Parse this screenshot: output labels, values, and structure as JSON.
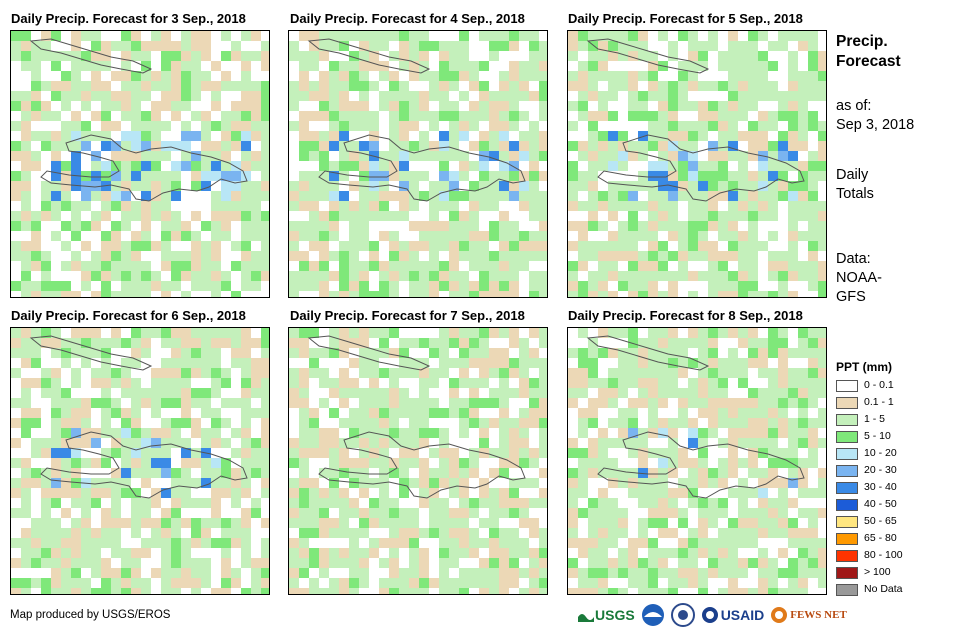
{
  "panels": [
    {
      "title": "Daily Precip. Forecast for 3 Sep., 2018"
    },
    {
      "title": "Daily Precip. Forecast for 4 Sep., 2018"
    },
    {
      "title": "Daily Precip. Forecast for 5 Sep., 2018"
    },
    {
      "title": "Daily Precip. Forecast for 6 Sep., 2018"
    },
    {
      "title": "Daily Precip. Forecast for 7 Sep., 2018"
    },
    {
      "title": "Daily Precip. Forecast for 8 Sep., 2018"
    }
  ],
  "side": {
    "heading_line1": "Precip.",
    "heading_line2": "Forecast",
    "asof_line1": "as of:",
    "asof_line2": "Sep 3, 2018",
    "daily_line1": "Daily",
    "daily_line2": "Totals",
    "data_line1": "Data:",
    "data_line2": "NOAA-",
    "data_line3": "GFS"
  },
  "legend": {
    "title": "PPT (mm)",
    "items": [
      {
        "label": "0 - 0.1",
        "color": "#ffffff"
      },
      {
        "label": "0.1 - 1",
        "color": "#ecd8b6"
      },
      {
        "label": "1 - 5",
        "color": "#c4f0bb"
      },
      {
        "label": "5 - 10",
        "color": "#7fe87a"
      },
      {
        "label": "10 - 20",
        "color": "#b8e6f6"
      },
      {
        "label": "20 - 30",
        "color": "#7ab4f0"
      },
      {
        "label": "30 - 40",
        "color": "#3a8ae6"
      },
      {
        "label": "40 - 50",
        "color": "#1c5cd8"
      },
      {
        "label": "50 - 65",
        "color": "#ffe680"
      },
      {
        "label": "65 - 80",
        "color": "#ff9900"
      },
      {
        "label": "80 - 100",
        "color": "#ff3300"
      },
      {
        "label": "> 100",
        "color": "#a01818"
      },
      {
        "label": "No Data",
        "color": "#999999"
      }
    ]
  },
  "footer": {
    "credit": "Map produced by USGS/EROS",
    "logo_usgs": "USGS",
    "logo_usaid": "USAID",
    "logo_fews": "FEWS NET"
  }
}
